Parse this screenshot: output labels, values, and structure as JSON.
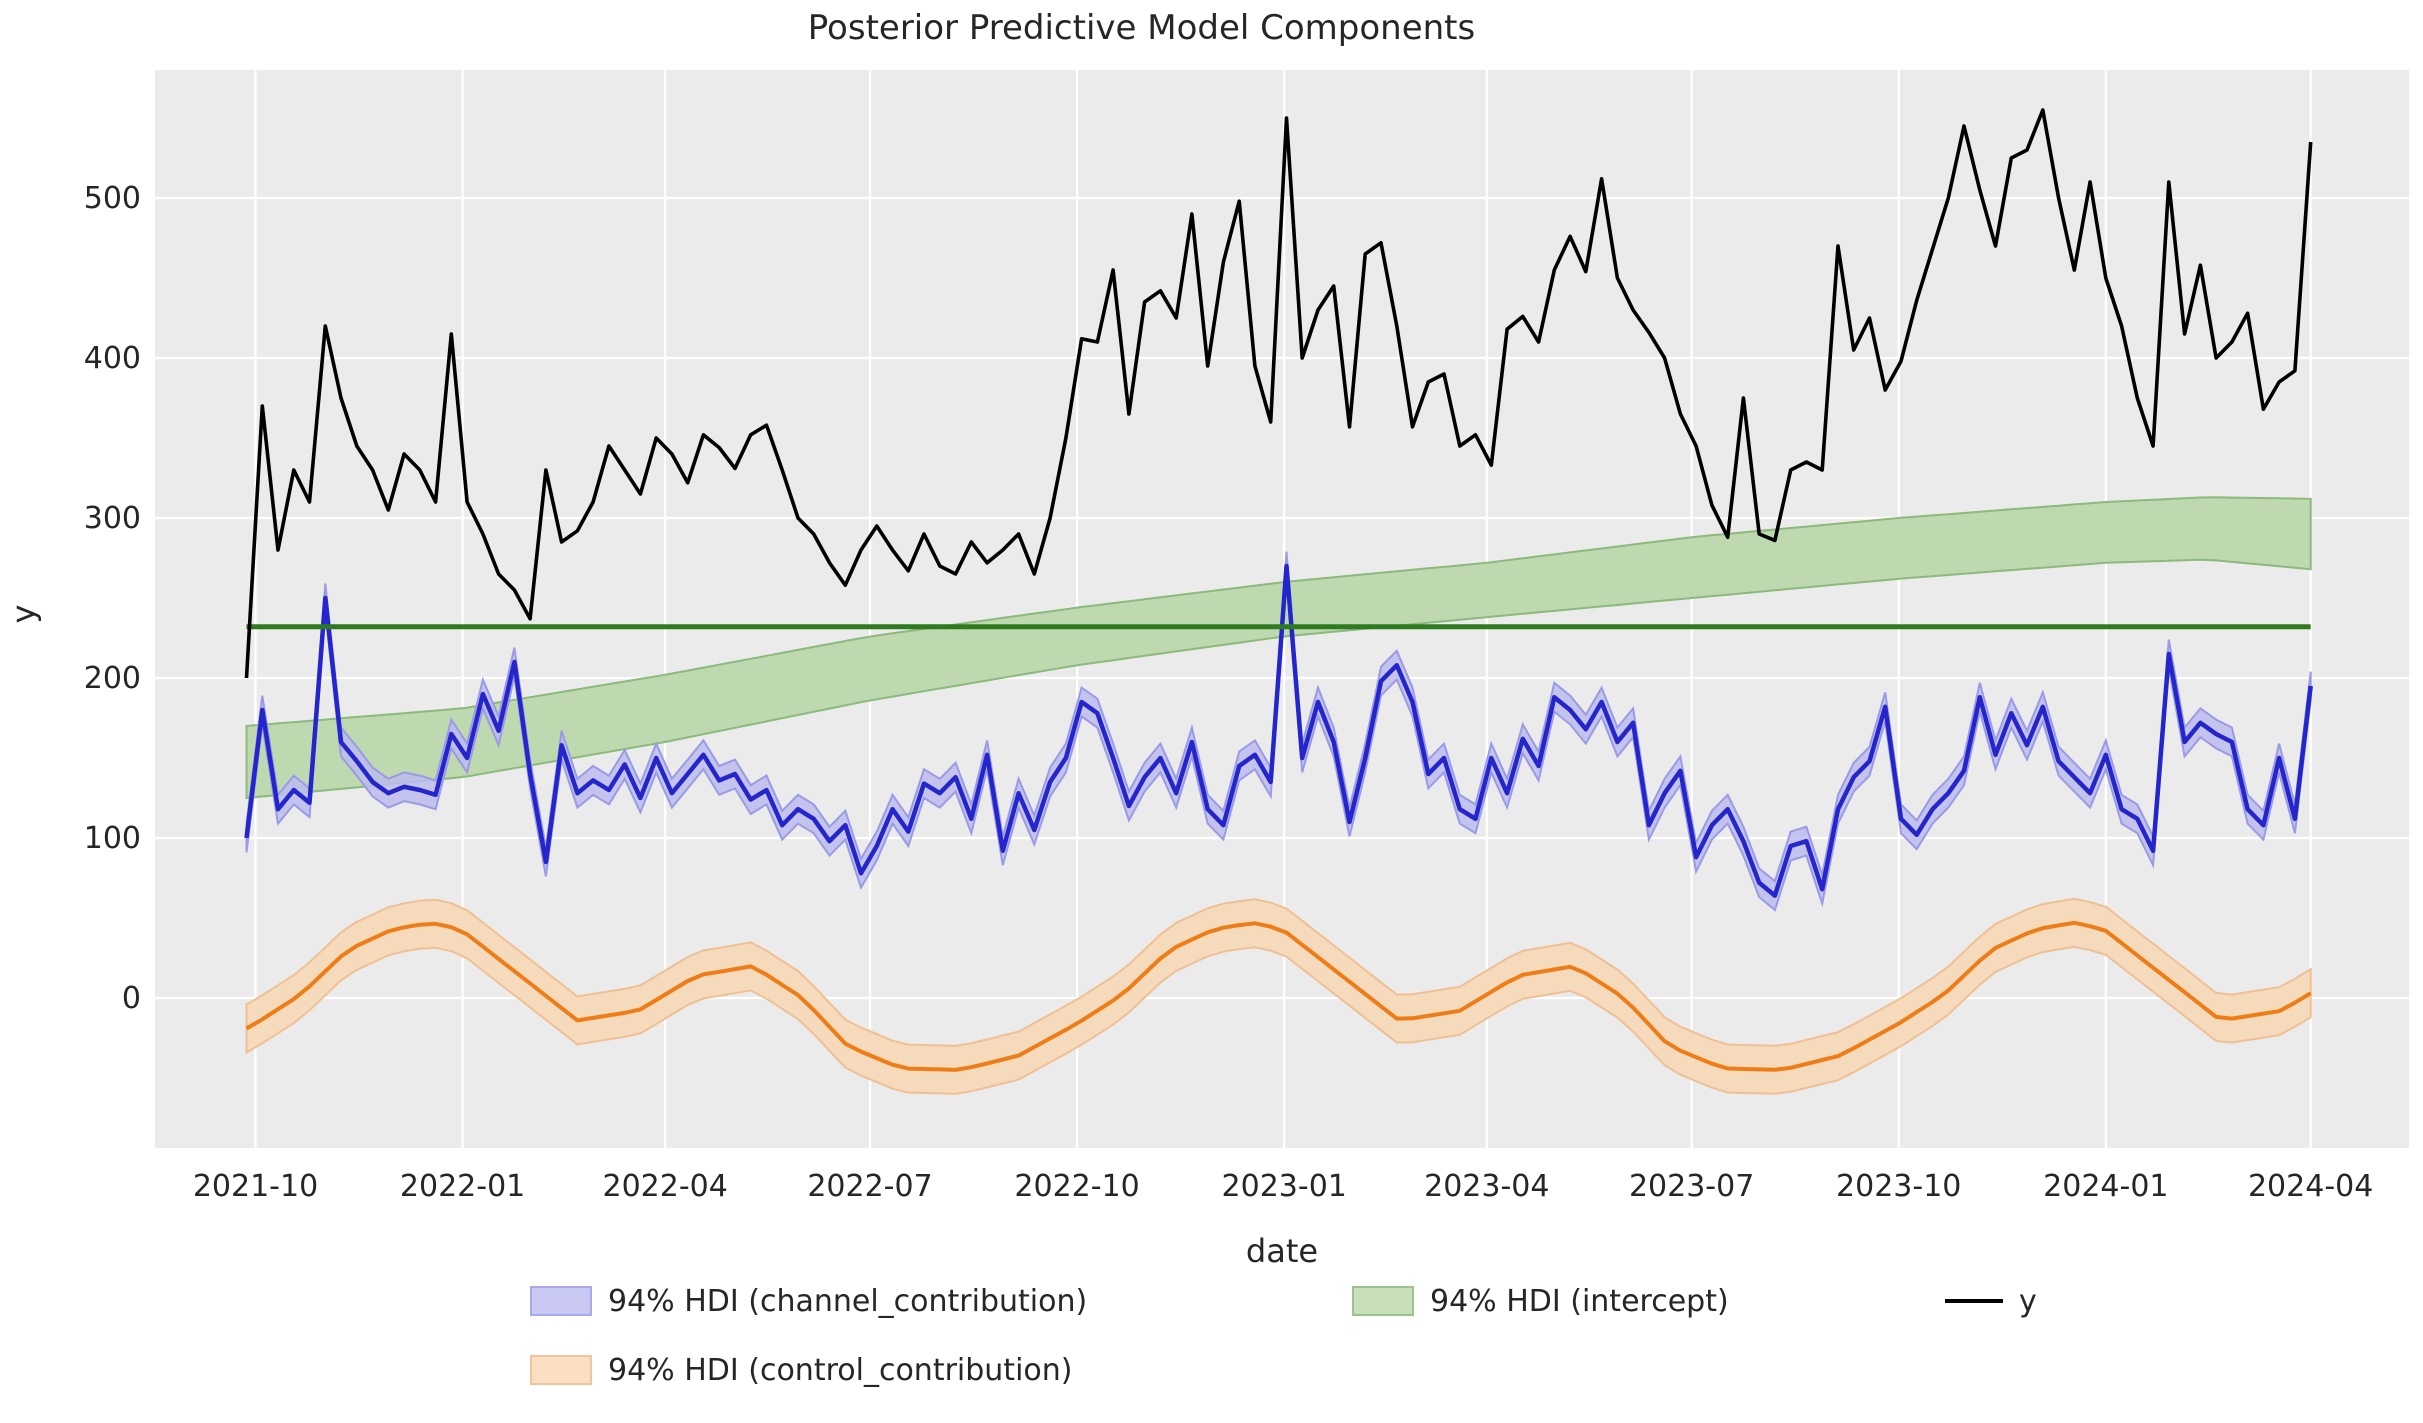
{
  "title": "Posterior Predictive Model Components",
  "axes": {
    "xlabel": "date",
    "ylabel": "y",
    "x_ticks": [
      {
        "date": "2021-10-01",
        "label": "2021-10"
      },
      {
        "date": "2022-01-01",
        "label": "2022-01"
      },
      {
        "date": "2022-04-01",
        "label": "2022-04"
      },
      {
        "date": "2022-07-01",
        "label": "2022-07"
      },
      {
        "date": "2022-10-01",
        "label": "2022-10"
      },
      {
        "date": "2023-01-01",
        "label": "2023-01"
      },
      {
        "date": "2023-04-01",
        "label": "2023-04"
      },
      {
        "date": "2023-07-01",
        "label": "2023-07"
      },
      {
        "date": "2023-10-01",
        "label": "2023-10"
      },
      {
        "date": "2024-01-01",
        "label": "2024-01"
      },
      {
        "date": "2024-04-01",
        "label": "2024-04"
      }
    ],
    "y_ticks": [
      0,
      100,
      200,
      300,
      400,
      500
    ]
  },
  "legend": {
    "items": [
      {
        "label": "94% HDI (channel_contribution)",
        "swatch_fill": "#c9c9f4",
        "swatch_edge": "#a9a9ee",
        "kind": "patch"
      },
      {
        "label": "94% HDI (intercept)",
        "swatch_fill": "#c9dfbc",
        "swatch_edge": "#9cc48a",
        "kind": "patch"
      },
      {
        "label": "y",
        "swatch_fill": "#000000",
        "swatch_edge": "#000000",
        "kind": "line"
      },
      {
        "label": "94% HDI (control_contribution)",
        "swatch_fill": "#fbdfc2",
        "swatch_edge": "#f3c49a",
        "kind": "patch"
      }
    ]
  },
  "colors": {
    "figure_bg": "#ffffff",
    "plot_bg": "#ebebeb",
    "grid": "#ffffff",
    "text": "#262626",
    "y_line": "#000000",
    "channel_line": "#2525cc",
    "channel_band": "#bcbcee",
    "channel_band_edge": "#9a9ae6",
    "control_line": "#ee7d18",
    "control_band": "#f6dabc",
    "control_band_edge": "#eec094",
    "intercept_line": "#2d7a1f",
    "intercept_band": "#bed8b0",
    "intercept_band_edge": "#8cb97c"
  },
  "chart_data": {
    "type": "line",
    "title": "Posterior Predictive Model Components",
    "xlabel": "date",
    "ylabel": "y",
    "x_start": "2021-09-27",
    "freq_days": 7,
    "n_points": 132,
    "ylim": [
      -94,
      580
    ],
    "grid": true,
    "legend_position": "bottom",
    "series": [
      {
        "name": "y",
        "style": "line",
        "values": [
          200,
          370,
          280,
          330,
          310,
          420,
          375,
          345,
          330,
          305,
          340,
          330,
          310,
          415,
          310,
          290,
          265,
          255,
          237,
          330,
          285,
          292,
          310,
          345,
          330,
          315,
          350,
          340,
          322,
          352,
          344,
          331,
          352,
          358,
          330,
          300,
          290,
          272,
          258,
          280,
          295,
          280,
          267,
          290,
          270,
          265,
          285,
          272,
          280,
          290,
          265,
          300,
          350,
          412,
          410,
          455,
          365,
          435,
          442,
          425,
          490,
          395,
          460,
          498,
          395,
          360,
          550,
          400,
          430,
          445,
          357,
          465,
          472,
          420,
          357,
          385,
          390,
          345,
          352,
          333,
          418,
          426,
          410,
          455,
          476,
          454,
          512,
          450,
          430,
          416,
          400,
          365,
          345,
          308,
          288,
          375,
          290,
          286,
          330,
          335,
          330,
          470,
          405,
          425,
          380,
          398,
          436,
          468,
          500,
          545,
          505,
          470,
          525,
          530,
          555,
          500,
          455,
          510,
          450,
          420,
          375,
          345,
          510,
          415,
          458,
          400,
          410,
          428,
          368,
          385,
          392,
          535
        ]
      },
      {
        "name": "channel_contribution",
        "style": "line+band",
        "hdi": "94%",
        "band_halfwidth": 9,
        "values": [
          100,
          180,
          118,
          130,
          122,
          250,
          160,
          148,
          135,
          128,
          132,
          130,
          127,
          165,
          150,
          190,
          167,
          210,
          140,
          85,
          158,
          128,
          136,
          130,
          146,
          125,
          150,
          128,
          140,
          152,
          136,
          140,
          124,
          130,
          108,
          118,
          112,
          98,
          108,
          78,
          95,
          118,
          104,
          134,
          128,
          138,
          112,
          152,
          92,
          128,
          105,
          135,
          150,
          185,
          178,
          150,
          120,
          138,
          150,
          128,
          160,
          118,
          108,
          145,
          152,
          135,
          270,
          150,
          185,
          160,
          110,
          150,
          198,
          208,
          185,
          140,
          150,
          118,
          112,
          150,
          128,
          162,
          145,
          188,
          180,
          168,
          185,
          160,
          172,
          108,
          128,
          142,
          88,
          108,
          118,
          98,
          72,
          64,
          95,
          98,
          68,
          118,
          138,
          148,
          182,
          112,
          102,
          118,
          128,
          142,
          188,
          152,
          178,
          158,
          182,
          148,
          138,
          128,
          152,
          118,
          112,
          92,
          215,
          160,
          172,
          165,
          160,
          118,
          108,
          150,
          112,
          195
        ]
      },
      {
        "name": "control_contribution",
        "style": "line+band",
        "hdi": "94%",
        "band_halfwidth": 15,
        "seasonal_anchors_doy": [
          [
            1,
            42
          ],
          [
            32,
            8
          ],
          [
            52,
            -14
          ],
          [
            79,
            -8
          ],
          [
            105,
            14
          ],
          [
            130,
            20
          ],
          [
            152,
            0
          ],
          [
            172,
            -30
          ],
          [
            196,
            -44
          ],
          [
            222,
            -45
          ],
          [
            248,
            -36
          ],
          [
            274,
            -16
          ],
          [
            294,
            2
          ],
          [
            315,
            30
          ],
          [
            335,
            43
          ],
          [
            352,
            47
          ],
          [
            365,
            43
          ]
        ]
      },
      {
        "name": "intercept",
        "style": "band+hline",
        "hdi": "94%",
        "line_value": 232,
        "band_anchors": [
          [
            "2021-09-27",
            125,
            170
          ],
          [
            "2022-01-01",
            138,
            181
          ],
          [
            "2022-04-01",
            160,
            202
          ],
          [
            "2022-07-01",
            186,
            226
          ],
          [
            "2022-10-01",
            208,
            244
          ],
          [
            "2023-01-01",
            226,
            260
          ],
          [
            "2023-04-01",
            238,
            272
          ],
          [
            "2023-07-01",
            250,
            288
          ],
          [
            "2023-10-01",
            262,
            300
          ],
          [
            "2024-01-01",
            272,
            310
          ],
          [
            "2024-02-15",
            274,
            313
          ],
          [
            "2024-04-01",
            268,
            312
          ]
        ]
      }
    ]
  }
}
